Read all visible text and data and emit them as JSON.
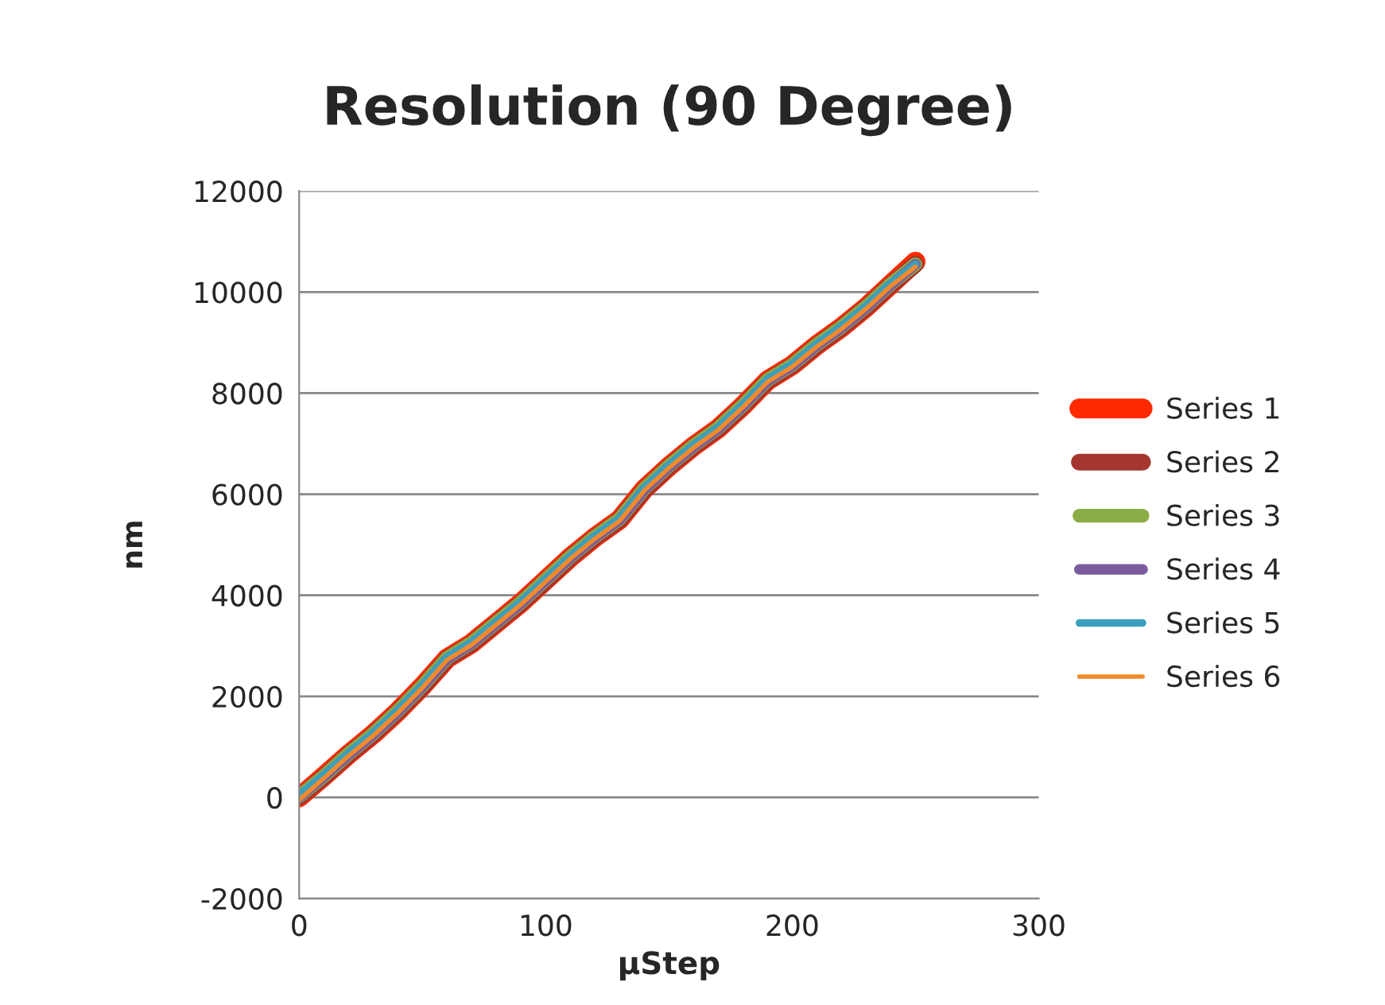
{
  "chart_data": {
    "type": "line",
    "title": "Resolution (90 Degree)",
    "xlabel": "μStep",
    "ylabel": "nm",
    "x": [
      0,
      10,
      20,
      30,
      40,
      50,
      60,
      70,
      80,
      90,
      100,
      110,
      120,
      130,
      140,
      150,
      160,
      170,
      180,
      190,
      200,
      210,
      220,
      230,
      240,
      250
    ],
    "series": [
      {
        "name": "Series 1",
        "color": "#ff2a00",
        "values": [
          0,
          420,
          850,
          1250,
          1700,
          2200,
          2750,
          3050,
          3450,
          3850,
          4300,
          4750,
          5150,
          5500,
          6100,
          6550,
          6950,
          7300,
          7750,
          8250,
          8550,
          8950,
          9300,
          9700,
          10150,
          10600
        ]
      },
      {
        "name": "Series 2",
        "color": "#a5352f",
        "values": [
          0,
          400,
          840,
          1240,
          1690,
          2180,
          2740,
          3040,
          3440,
          3840,
          4280,
          4740,
          5140,
          5490,
          6080,
          6540,
          6940,
          7290,
          7740,
          8240,
          8540,
          8940,
          9290,
          9690,
          10140,
          10550
        ]
      },
      {
        "name": "Series 3",
        "color": "#8bad45",
        "values": [
          20,
          420,
          860,
          1260,
          1710,
          2210,
          2760,
          3060,
          3460,
          3860,
          4310,
          4760,
          5160,
          5510,
          6110,
          6560,
          6960,
          7310,
          7760,
          8260,
          8560,
          8960,
          9310,
          9710,
          10160,
          10550
        ]
      },
      {
        "name": "Series 4",
        "color": "#7a5c9e",
        "values": [
          0,
          410,
          840,
          1240,
          1690,
          2190,
          2740,
          3040,
          3440,
          3840,
          4290,
          4740,
          5140,
          5490,
          6090,
          6540,
          6940,
          7290,
          7740,
          8240,
          8540,
          8940,
          9290,
          9690,
          10140,
          10550
        ]
      },
      {
        "name": "Series 5",
        "color": "#3aa0bd",
        "values": [
          50,
          450,
          880,
          1280,
          1730,
          2230,
          2780,
          3080,
          3480,
          3880,
          4330,
          4780,
          5180,
          5530,
          6130,
          6580,
          6980,
          7330,
          7780,
          8280,
          8580,
          8980,
          9330,
          9730,
          10180,
          10550
        ]
      },
      {
        "name": "Series 6",
        "color": "#f08a2c",
        "values": [
          -50,
          380,
          820,
          1220,
          1670,
          2170,
          2720,
          3020,
          3420,
          3820,
          4270,
          4720,
          5120,
          5470,
          6070,
          6520,
          6920,
          7270,
          7720,
          8220,
          8520,
          8920,
          9270,
          9670,
          10120,
          10500
        ]
      }
    ],
    "xlim": [
      0,
      300
    ],
    "xticks": [
      0,
      100,
      200,
      300
    ],
    "ylim": [
      -2000,
      12000
    ],
    "yticks": [
      -2000,
      0,
      2000,
      4000,
      6000,
      8000,
      10000,
      12000
    ],
    "grid": "y",
    "legend": "right",
    "line_style": "solid"
  }
}
